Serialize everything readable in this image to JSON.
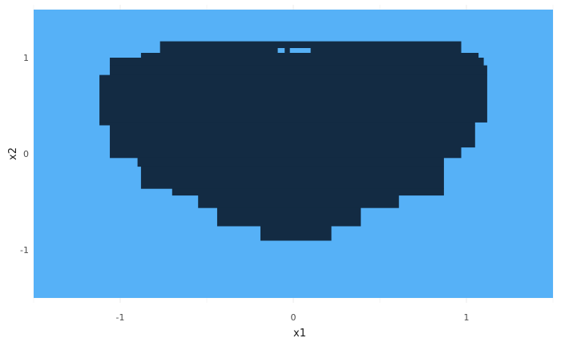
{
  "chart_data": {
    "type": "heatmap",
    "title": "",
    "xlabel": "x1",
    "ylabel": "x2",
    "xlim": [
      -1.5,
      1.5
    ],
    "ylim": [
      -1.55,
      1.55
    ],
    "x_ticks": [
      -1,
      0,
      1
    ],
    "y_ticks": [
      -1,
      0,
      1
    ],
    "x_tick_labels": [
      "-1",
      "0",
      "1"
    ],
    "y_tick_labels": [
      "-1",
      "0",
      "1"
    ],
    "grid": true,
    "legend": "none",
    "colors": {
      "background_region": "#56b1f7",
      "inner_region": "#132b43",
      "grid_major": "#ebebeb",
      "grid_minor": "#f4f4f4"
    },
    "region": {
      "outside_class_color": "#56b1f7",
      "inside_class_color": "#132b43",
      "rows": [
        {
          "y": [
            1.05,
            1.17
          ],
          "x": [
            -0.77,
            0.97
          ]
        },
        {
          "y": [
            1.0,
            1.05
          ],
          "x": [
            -0.88,
            1.07
          ]
        },
        {
          "y": [
            0.92,
            1.0
          ],
          "x": [
            -1.06,
            1.1
          ]
        },
        {
          "y": [
            0.82,
            0.92
          ],
          "x": [
            -1.06,
            1.12
          ]
        },
        {
          "y": [
            0.33,
            0.82
          ],
          "x": [
            -1.12,
            1.12
          ]
        },
        {
          "y": [
            0.3,
            0.33
          ],
          "x": [
            -1.12,
            1.05
          ]
        },
        {
          "y": [
            0.07,
            0.3
          ],
          "x": [
            -1.06,
            1.05
          ]
        },
        {
          "y": [
            -0.04,
            0.07
          ],
          "x": [
            -1.06,
            0.97
          ]
        },
        {
          "y": [
            -0.13,
            -0.04
          ],
          "x": [
            -0.9,
            0.87
          ]
        },
        {
          "y": [
            -0.36,
            -0.13
          ],
          "x": [
            -0.88,
            0.87
          ]
        },
        {
          "y": [
            -0.43,
            -0.36
          ],
          "x": [
            -0.7,
            0.87
          ]
        },
        {
          "y": [
            -0.56,
            -0.43
          ],
          "x": [
            -0.55,
            0.61
          ]
        },
        {
          "y": [
            -0.75,
            -0.56
          ],
          "x": [
            -0.44,
            0.39
          ]
        },
        {
          "y": [
            -0.9,
            -0.75
          ],
          "x": [
            -0.19,
            0.22
          ]
        }
      ]
    }
  }
}
